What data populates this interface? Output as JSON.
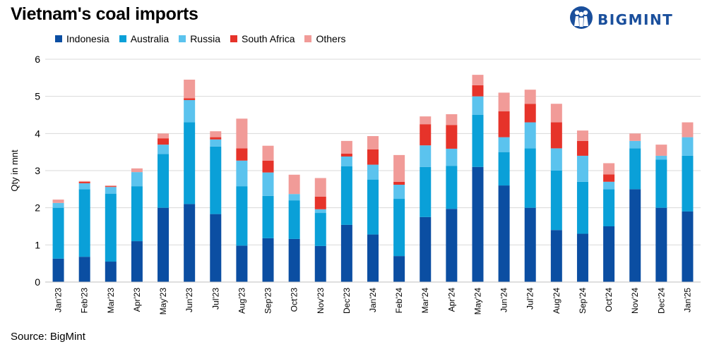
{
  "header": {
    "title": "Vietnam's coal imports",
    "logo_text": "BIGMINT",
    "logo_icon": "people-circle-icon"
  },
  "footer": {
    "source": "Source: BigMint"
  },
  "colors": {
    "Indonesia": "#0b4ea2",
    "Australia": "#0aa0d8",
    "Russia": "#5bc3ee",
    "South Africa": "#e6332a",
    "Others": "#f19b98",
    "brand": "#1a4f9c"
  },
  "chart_data": {
    "type": "bar",
    "stacked": true,
    "title": "Vietnam's coal imports",
    "xlabel": "",
    "ylabel": "Qty in mnt",
    "ylim": [
      0,
      6
    ],
    "yticks": [
      "0",
      "1",
      "2",
      "3",
      "4",
      "5",
      "6"
    ],
    "grid": true,
    "legend_position": "top-left",
    "categories": [
      "Jan'23",
      "Feb'23",
      "Mar'23",
      "Apr'23",
      "May'23",
      "Jun'23",
      "Jul'23",
      "Aug'23",
      "Sep'23",
      "Oct'23",
      "Nov'23",
      "Dec'23",
      "Jan'24",
      "Feb'24",
      "Mar'24",
      "Apr'24",
      "May'24",
      "Jun'24",
      "Jul'24",
      "Aug'24",
      "Sep'24",
      "Oct'24",
      "Nov'24",
      "Dec'24",
      "Jan'25"
    ],
    "series": [
      {
        "name": "Indonesia",
        "values": [
          0.63,
          0.68,
          0.55,
          1.1,
          2.0,
          2.1,
          1.83,
          0.98,
          1.18,
          1.16,
          0.97,
          1.54,
          1.28,
          0.7,
          1.75,
          1.97,
          3.1,
          2.6,
          2.0,
          1.4,
          1.3,
          1.5,
          2.5,
          2.0,
          1.9
        ]
      },
      {
        "name": "Australia",
        "values": [
          1.37,
          1.82,
          1.83,
          1.48,
          1.45,
          2.2,
          1.82,
          1.6,
          1.14,
          1.04,
          0.89,
          1.58,
          1.48,
          1.54,
          1.35,
          1.16,
          1.4,
          0.9,
          1.6,
          1.6,
          1.4,
          1.0,
          1.1,
          1.3,
          1.5
        ]
      },
      {
        "name": "Russia",
        "values": [
          0.13,
          0.16,
          0.18,
          0.38,
          0.25,
          0.6,
          0.19,
          0.69,
          0.63,
          0.17,
          0.1,
          0.26,
          0.4,
          0.38,
          0.58,
          0.46,
          0.5,
          0.4,
          0.7,
          0.6,
          0.7,
          0.2,
          0.2,
          0.1,
          0.5
        ]
      },
      {
        "name": "South Africa",
        "values": [
          0.0,
          0.04,
          0.02,
          0.0,
          0.17,
          0.05,
          0.06,
          0.33,
          0.32,
          0.0,
          0.34,
          0.08,
          0.41,
          0.08,
          0.57,
          0.64,
          0.3,
          0.7,
          0.5,
          0.7,
          0.4,
          0.2,
          0.0,
          0.0,
          0.0
        ]
      },
      {
        "name": "Others",
        "values": [
          0.09,
          0.02,
          0.02,
          0.1,
          0.13,
          0.5,
          0.16,
          0.8,
          0.4,
          0.52,
          0.5,
          0.34,
          0.36,
          0.72,
          0.21,
          0.29,
          0.28,
          0.5,
          0.38,
          0.5,
          0.28,
          0.3,
          0.2,
          0.3,
          0.4
        ]
      }
    ]
  }
}
